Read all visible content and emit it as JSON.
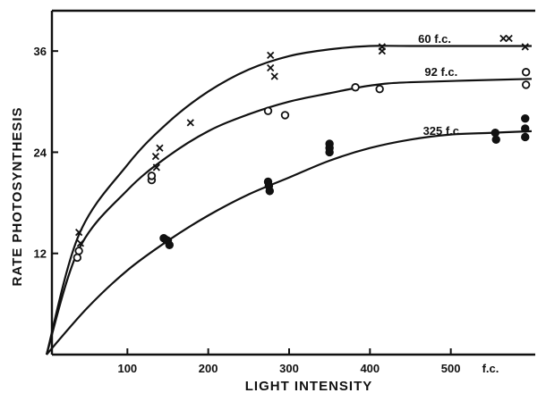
{
  "chart_data": {
    "type": "scatter",
    "title": "",
    "xlabel": "LIGHT   INTENSITY",
    "ylabel": "RATE  PHOTOSYNTHESIS",
    "x_unit_label": "f.c.",
    "xlim": [
      0,
      600
    ],
    "ylim": [
      0,
      40
    ],
    "x_ticks": [
      100,
      200,
      300,
      400,
      500
    ],
    "y_ticks": [
      12,
      24,
      36
    ],
    "grid": false,
    "series": [
      {
        "name": "60 f.c.",
        "marker": "x",
        "points": [
          [
            40,
            14.5
          ],
          [
            42,
            13.2
          ],
          [
            135,
            23.5
          ],
          [
            140,
            24.5
          ],
          [
            136,
            22.2
          ],
          [
            178,
            27.5
          ],
          [
            277,
            35.5
          ],
          [
            277,
            34.0
          ],
          [
            282,
            33.0
          ],
          [
            415,
            36.5
          ],
          [
            415,
            36.0
          ],
          [
            565,
            37.5
          ],
          [
            572,
            37.5
          ],
          [
            592,
            36.5
          ]
        ],
        "curve": [
          [
            0,
            0
          ],
          [
            40,
            14.2
          ],
          [
            100,
            22.5
          ],
          [
            150,
            27.5
          ],
          [
            200,
            31.2
          ],
          [
            250,
            33.8
          ],
          [
            300,
            35.4
          ],
          [
            350,
            36.2
          ],
          [
            400,
            36.6
          ],
          [
            450,
            36.6
          ],
          [
            600,
            36.6
          ]
        ]
      },
      {
        "name": "92 f.c.",
        "marker": "o",
        "points": [
          [
            40,
            12.3
          ],
          [
            38,
            11.5
          ],
          [
            130,
            20.7
          ],
          [
            130,
            21.2
          ],
          [
            274,
            28.9
          ],
          [
            295,
            28.4
          ],
          [
            382,
            31.7
          ],
          [
            412,
            31.5
          ],
          [
            593,
            33.5
          ],
          [
            593,
            32.0
          ]
        ],
        "curve": [
          [
            0,
            0
          ],
          [
            40,
            12.5
          ],
          [
            100,
            19.5
          ],
          [
            150,
            23.5
          ],
          [
            200,
            26.5
          ],
          [
            250,
            28.5
          ],
          [
            300,
            30.0
          ],
          [
            350,
            31.0
          ],
          [
            400,
            31.9
          ],
          [
            450,
            32.3
          ],
          [
            600,
            32.7
          ]
        ]
      },
      {
        "name": "325 f.c.",
        "marker": "●",
        "points": [
          [
            145,
            13.8
          ],
          [
            150,
            13.5
          ],
          [
            152,
            13.0
          ],
          [
            148,
            13.6
          ],
          [
            274,
            20.5
          ],
          [
            275,
            20.0
          ],
          [
            276,
            19.4
          ],
          [
            350,
            25.0
          ],
          [
            350,
            24.5
          ],
          [
            350,
            24.0
          ],
          [
            555,
            26.3
          ],
          [
            556,
            25.5
          ],
          [
            592,
            28.0
          ],
          [
            592,
            26.8
          ],
          [
            592,
            25.8
          ]
        ],
        "curve": [
          [
            0,
            0
          ],
          [
            50,
            5.5
          ],
          [
            100,
            10.0
          ],
          [
            150,
            13.5
          ],
          [
            200,
            16.5
          ],
          [
            250,
            19.0
          ],
          [
            300,
            21.0
          ],
          [
            350,
            23.0
          ],
          [
            400,
            24.5
          ],
          [
            450,
            25.5
          ],
          [
            500,
            26.1
          ],
          [
            550,
            26.3
          ],
          [
            600,
            26.5
          ]
        ]
      }
    ]
  }
}
